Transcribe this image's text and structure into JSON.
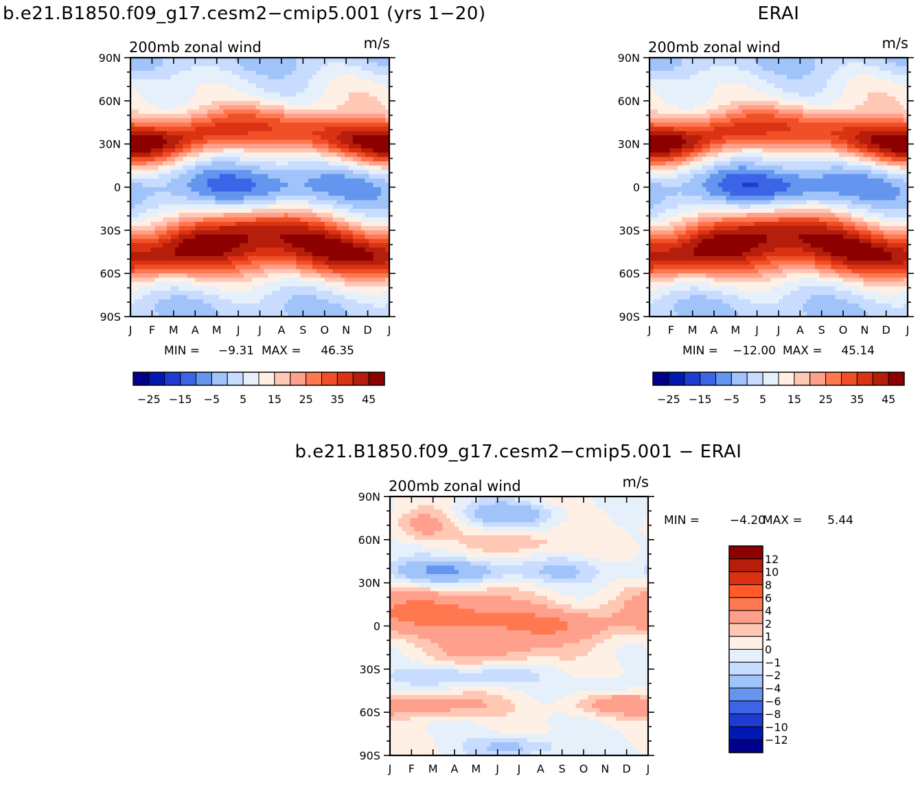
{
  "chart_data": [
    {
      "type": "heatmap",
      "title": "b.e21.B1850.f09_g17.cesm2-cmip5.001 (yrs 1-20)",
      "subtitle_left": "200mb zonal wind",
      "subtitle_right": "m/s",
      "x_ticks": [
        "J",
        "F",
        "M",
        "A",
        "M",
        "J",
        "J",
        "A",
        "S",
        "O",
        "N",
        "D",
        "J"
      ],
      "y_ticks": [
        "90N",
        "60N",
        "30N",
        "0",
        "30S",
        "60S",
        "90S"
      ],
      "stats": {
        "min_label": "MIN =",
        "min": "-9.31",
        "max_label": "MAX =",
        "max": "46.35"
      },
      "colorbar_labels": [
        "-25",
        "-15",
        "-5",
        "5",
        "15",
        "25",
        "35",
        "45"
      ],
      "colorbar_colors": [
        "#00008c",
        "#0019b4",
        "#1e3cd2",
        "#3c64e6",
        "#6496f0",
        "#a0c3fa",
        "#c8dcff",
        "#e6f0fa",
        "#fff0e6",
        "#ffc8b4",
        "#ffa08c",
        "#ff7850",
        "#f05028",
        "#dc3214",
        "#b41e0a",
        "#8c0000"
      ],
      "features": [
        {
          "month": 1.0,
          "lat": 30,
          "value": 46
        },
        {
          "month": 11.7,
          "lat": 30,
          "value": 42
        },
        {
          "month": 6.2,
          "lat": -30,
          "value": 45
        },
        {
          "month": 2.0,
          "lat": -50,
          "value": 35
        },
        {
          "month": 6.2,
          "lat": 5,
          "value": -9
        },
        {
          "month": 4.5,
          "lat": 82,
          "value": -3
        }
      ]
    },
    {
      "type": "heatmap",
      "title": "ERAI",
      "subtitle_left": "200mb zonal wind",
      "subtitle_right": "m/s",
      "x_ticks": [
        "J",
        "F",
        "M",
        "A",
        "M",
        "J",
        "J",
        "A",
        "S",
        "O",
        "N",
        "D",
        "J"
      ],
      "y_ticks": [
        "90N",
        "60N",
        "30N",
        "0",
        "30S",
        "60S",
        "90S"
      ],
      "stats": {
        "min_label": "MIN =",
        "min": "-12.00",
        "max_label": "MAX =",
        "max": "45.14"
      },
      "colorbar_labels": [
        "-25",
        "-15",
        "-5",
        "5",
        "15",
        "25",
        "35",
        "45"
      ],
      "colorbar_colors": [
        "#00008c",
        "#0019b4",
        "#1e3cd2",
        "#3c64e6",
        "#6496f0",
        "#a0c3fa",
        "#c8dcff",
        "#e6f0fa",
        "#fff0e6",
        "#ffc8b4",
        "#ffa08c",
        "#ff7850",
        "#f05028",
        "#dc3214",
        "#b41e0a",
        "#8c0000"
      ],
      "features": [
        {
          "month": 1.0,
          "lat": 30,
          "value": 45
        },
        {
          "month": 12.0,
          "lat": 30,
          "value": 42
        },
        {
          "month": 7.0,
          "lat": -30,
          "value": 42
        },
        {
          "month": 6.5,
          "lat": 7,
          "value": -12
        },
        {
          "month": 1.5,
          "lat": -48,
          "value": 35
        }
      ]
    },
    {
      "type": "heatmap",
      "title": "b.e21.B1850.f09_g17.cesm2-cmip5.001 - ERAI",
      "subtitle_left": "200mb zonal wind",
      "subtitle_right": "m/s",
      "x_ticks": [
        "J",
        "F",
        "M",
        "A",
        "M",
        "J",
        "J",
        "A",
        "S",
        "O",
        "N",
        "D",
        "J"
      ],
      "y_ticks": [
        "90N",
        "60N",
        "30N",
        "0",
        "30S",
        "60S",
        "90S"
      ],
      "stats": {
        "min_label": "MIN =",
        "min": "-4.20",
        "max_label": "MAX =",
        "max": "5.44"
      },
      "colorbar_labels": [
        "12",
        "10",
        "8",
        "6",
        "4",
        "2",
        "1",
        "0",
        "-1",
        "-2",
        "-4",
        "-6",
        "-8",
        "-10",
        "-12"
      ],
      "colorbar_colors": [
        "#8c0000",
        "#b41e0a",
        "#dc3214",
        "#ff5a28",
        "#ff7850",
        "#ffa08c",
        "#ffc8b4",
        "#fff0e6",
        "#e6f0fa",
        "#c8dcff",
        "#a0c3fa",
        "#6496f0",
        "#3c64e6",
        "#1e3cd2",
        "#0019b4",
        "#00008c"
      ],
      "features": [
        {
          "month": 2.5,
          "lat": 70,
          "value": 2.5
        },
        {
          "month": 6.5,
          "lat": 78,
          "value": -2.5
        },
        {
          "month": 3.5,
          "lat": 40,
          "value": -3.5
        },
        {
          "month": 3.0,
          "lat": 10,
          "value": 4.5
        },
        {
          "month": 8.0,
          "lat": 0,
          "value": 3.5
        },
        {
          "month": 2.5,
          "lat": -55,
          "value": 3
        },
        {
          "month": 7.0,
          "lat": -85,
          "value": -2
        }
      ]
    }
  ]
}
